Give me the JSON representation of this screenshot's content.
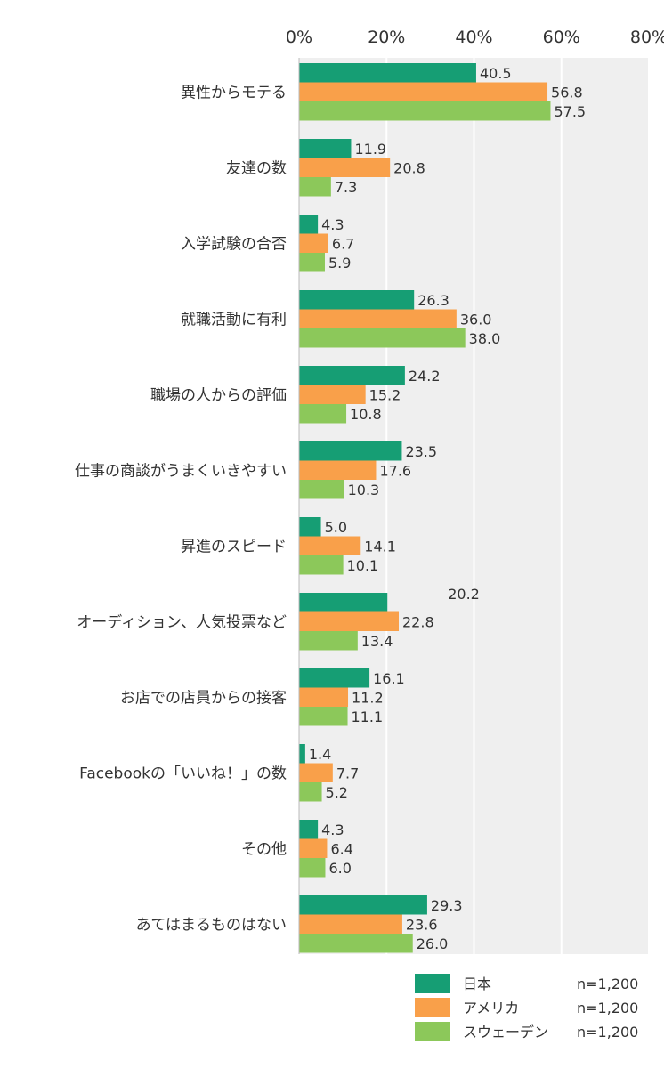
{
  "chart_data": {
    "type": "bar",
    "orientation": "horizontal",
    "categories": [
      "異性からモテる",
      "友達の数",
      "入学試験の合否",
      "就職活動に有利",
      "職場の人からの評価",
      "仕事の商談がうまくいきやすい",
      "昇進のスピード",
      "オーディション、人気投票など",
      "お店での店員からの接客",
      "Facebookの「いいね！」の数",
      "その他",
      "あてはまるものはない"
    ],
    "series": [
      {
        "name": "日本",
        "color": "#169e74",
        "n": "n=1,200",
        "values": [
          40.5,
          11.9,
          4.3,
          26.3,
          24.2,
          23.5,
          5.0,
          20.2,
          16.1,
          1.4,
          4.3,
          29.3
        ],
        "labels": [
          "40.5",
          "11.9",
          "4.3",
          "26.3",
          "24.2",
          "23.5",
          "5.0",
          "20.2",
          "16.1",
          "1.4",
          "4.3",
          "29.3"
        ]
      },
      {
        "name": "アメリカ",
        "color": "#f9a04a",
        "n": "n=1,200",
        "values": [
          56.8,
          20.8,
          6.7,
          36.0,
          15.2,
          17.6,
          14.1,
          22.8,
          11.2,
          7.7,
          6.4,
          23.6
        ],
        "labels": [
          "56.8",
          "20.8",
          "6.7",
          "36.0",
          "15.2",
          "17.6",
          "14.1",
          "22.8",
          "11.2",
          "7.7",
          "6.4",
          "23.6"
        ]
      },
      {
        "name": "スウェーデン",
        "color": "#8cc85a",
        "n": "n=1,200",
        "values": [
          57.5,
          7.3,
          5.9,
          38.0,
          10.8,
          10.3,
          10.1,
          13.4,
          11.1,
          5.2,
          6.0,
          26.0
        ],
        "labels": [
          "57.5",
          "7.3",
          "5.9",
          "38.0",
          "10.8",
          "10.3",
          "10.1",
          "13.4",
          "11.1",
          "5.2",
          "6.0",
          "26.0"
        ]
      }
    ],
    "xlim": [
      0,
      80
    ],
    "ticks": [
      0,
      20,
      40,
      60,
      80
    ],
    "tick_labels": [
      "0%",
      "20%",
      "40%",
      "60%",
      "80%"
    ],
    "grid": true,
    "legend_position": "bottom-right",
    "plot_background": "#efefef"
  }
}
